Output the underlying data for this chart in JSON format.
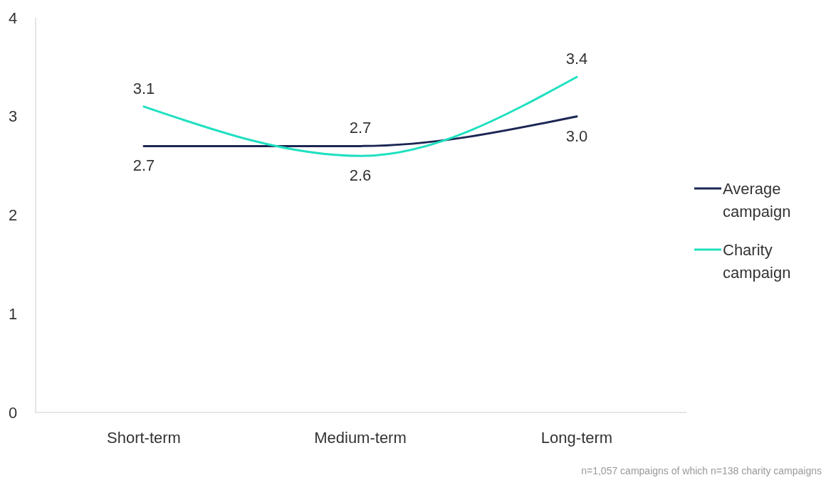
{
  "chart_data": {
    "type": "line",
    "categories": [
      "Short-term",
      "Medium-term",
      "Long-term"
    ],
    "series": [
      {
        "name": "Average campaign",
        "color": "#1b2653",
        "values": [
          2.7,
          2.7,
          3.0
        ],
        "value_labels": [
          "2.7",
          "2.7",
          "3.0"
        ]
      },
      {
        "name": "Charity campaign",
        "color": "#1fe0c0",
        "values": [
          3.1,
          2.6,
          3.4
        ],
        "value_labels": [
          "3.1",
          "2.6",
          "3.4"
        ]
      }
    ],
    "ylim": [
      0,
      4
    ],
    "yticks": [
      0,
      1,
      2,
      3,
      4
    ],
    "grid": false,
    "legend": "right",
    "marker": "none",
    "line_style": "solid",
    "annotations": [
      "n=1,057 campaigns of which n=138 charity campaigns"
    ]
  }
}
